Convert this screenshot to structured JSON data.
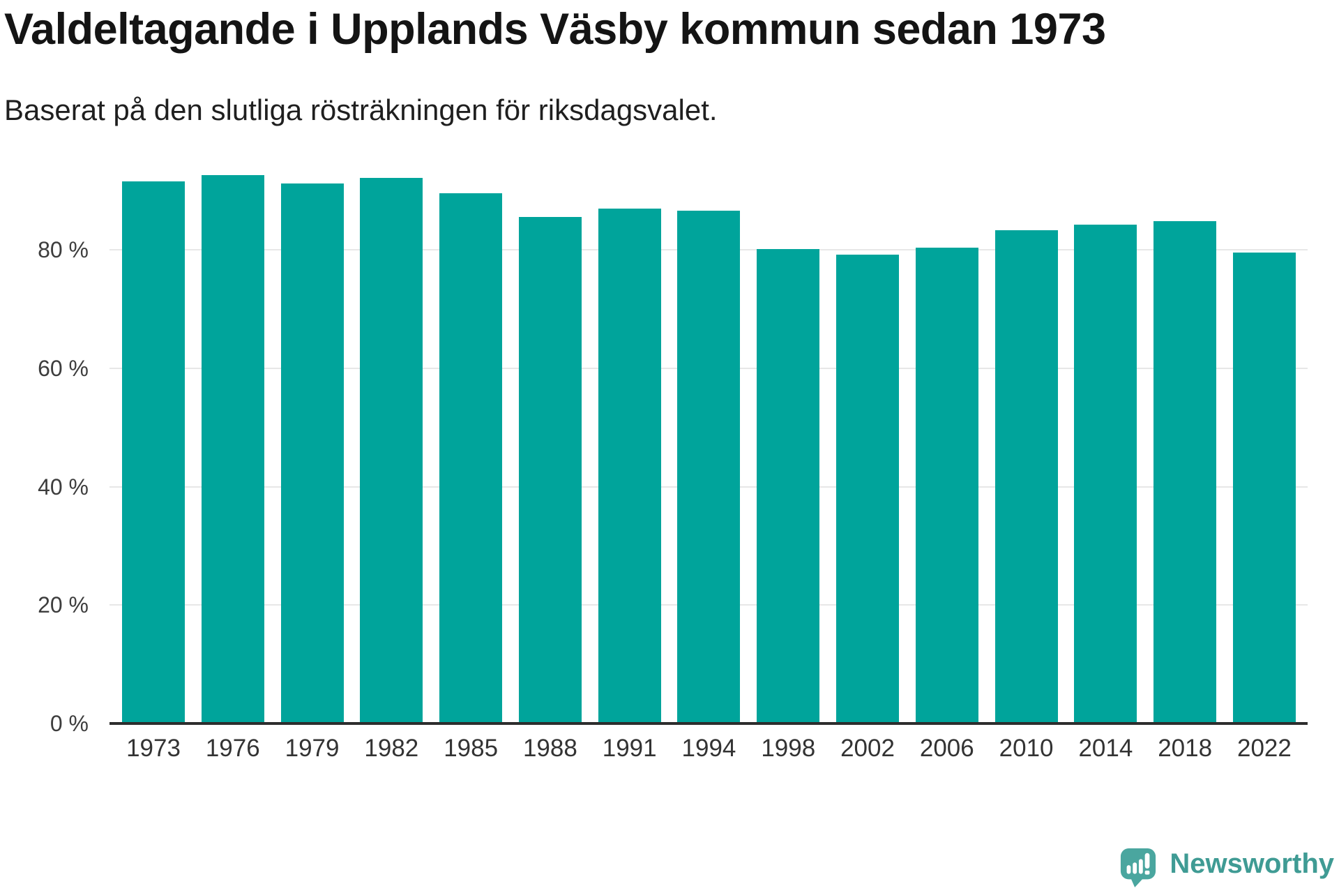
{
  "header": {
    "title": "Valdeltagande i Upplands Väsby kommun sedan 1973",
    "subtitle": "Baserat på den slutliga rösträkningen för riksdagsvalet."
  },
  "chart_data": {
    "type": "bar",
    "title": "Valdeltagande i Upplands Väsby kommun sedan 1973",
    "subtitle": "Baserat på den slutliga rösträkningen för riksdagsvalet.",
    "categories": [
      "1973",
      "1976",
      "1979",
      "1982",
      "1985",
      "1988",
      "1991",
      "1994",
      "1998",
      "2002",
      "2006",
      "2010",
      "2014",
      "2018",
      "2022"
    ],
    "values": [
      91.6,
      92.6,
      91.2,
      92.1,
      89.6,
      85.5,
      86.9,
      86.6,
      80.1,
      79.2,
      80.3,
      83.3,
      84.2,
      84.8,
      79.5
    ],
    "unit": "%",
    "xlabel": "",
    "ylabel": "",
    "ylim": [
      0,
      100
    ],
    "y_ticks": [
      {
        "value": 0,
        "label": "0 %"
      },
      {
        "value": 20,
        "label": "20 %"
      },
      {
        "value": 40,
        "label": "40 %"
      },
      {
        "value": 60,
        "label": "60 %"
      },
      {
        "value": 80,
        "label": "80 %"
      }
    ],
    "grid": true,
    "legend": "none",
    "bar_color": "#00a49b"
  },
  "footer": {
    "brand": "Newsworthy"
  },
  "colors": {
    "bar": "#00a49b",
    "grid": "#e7e7e7",
    "axis": "#2d2d2d",
    "title_text": "#141414",
    "axis_text": "#3d3d3d",
    "brand_text": "#3f9b94",
    "brand_icon": "#4aa69f"
  }
}
